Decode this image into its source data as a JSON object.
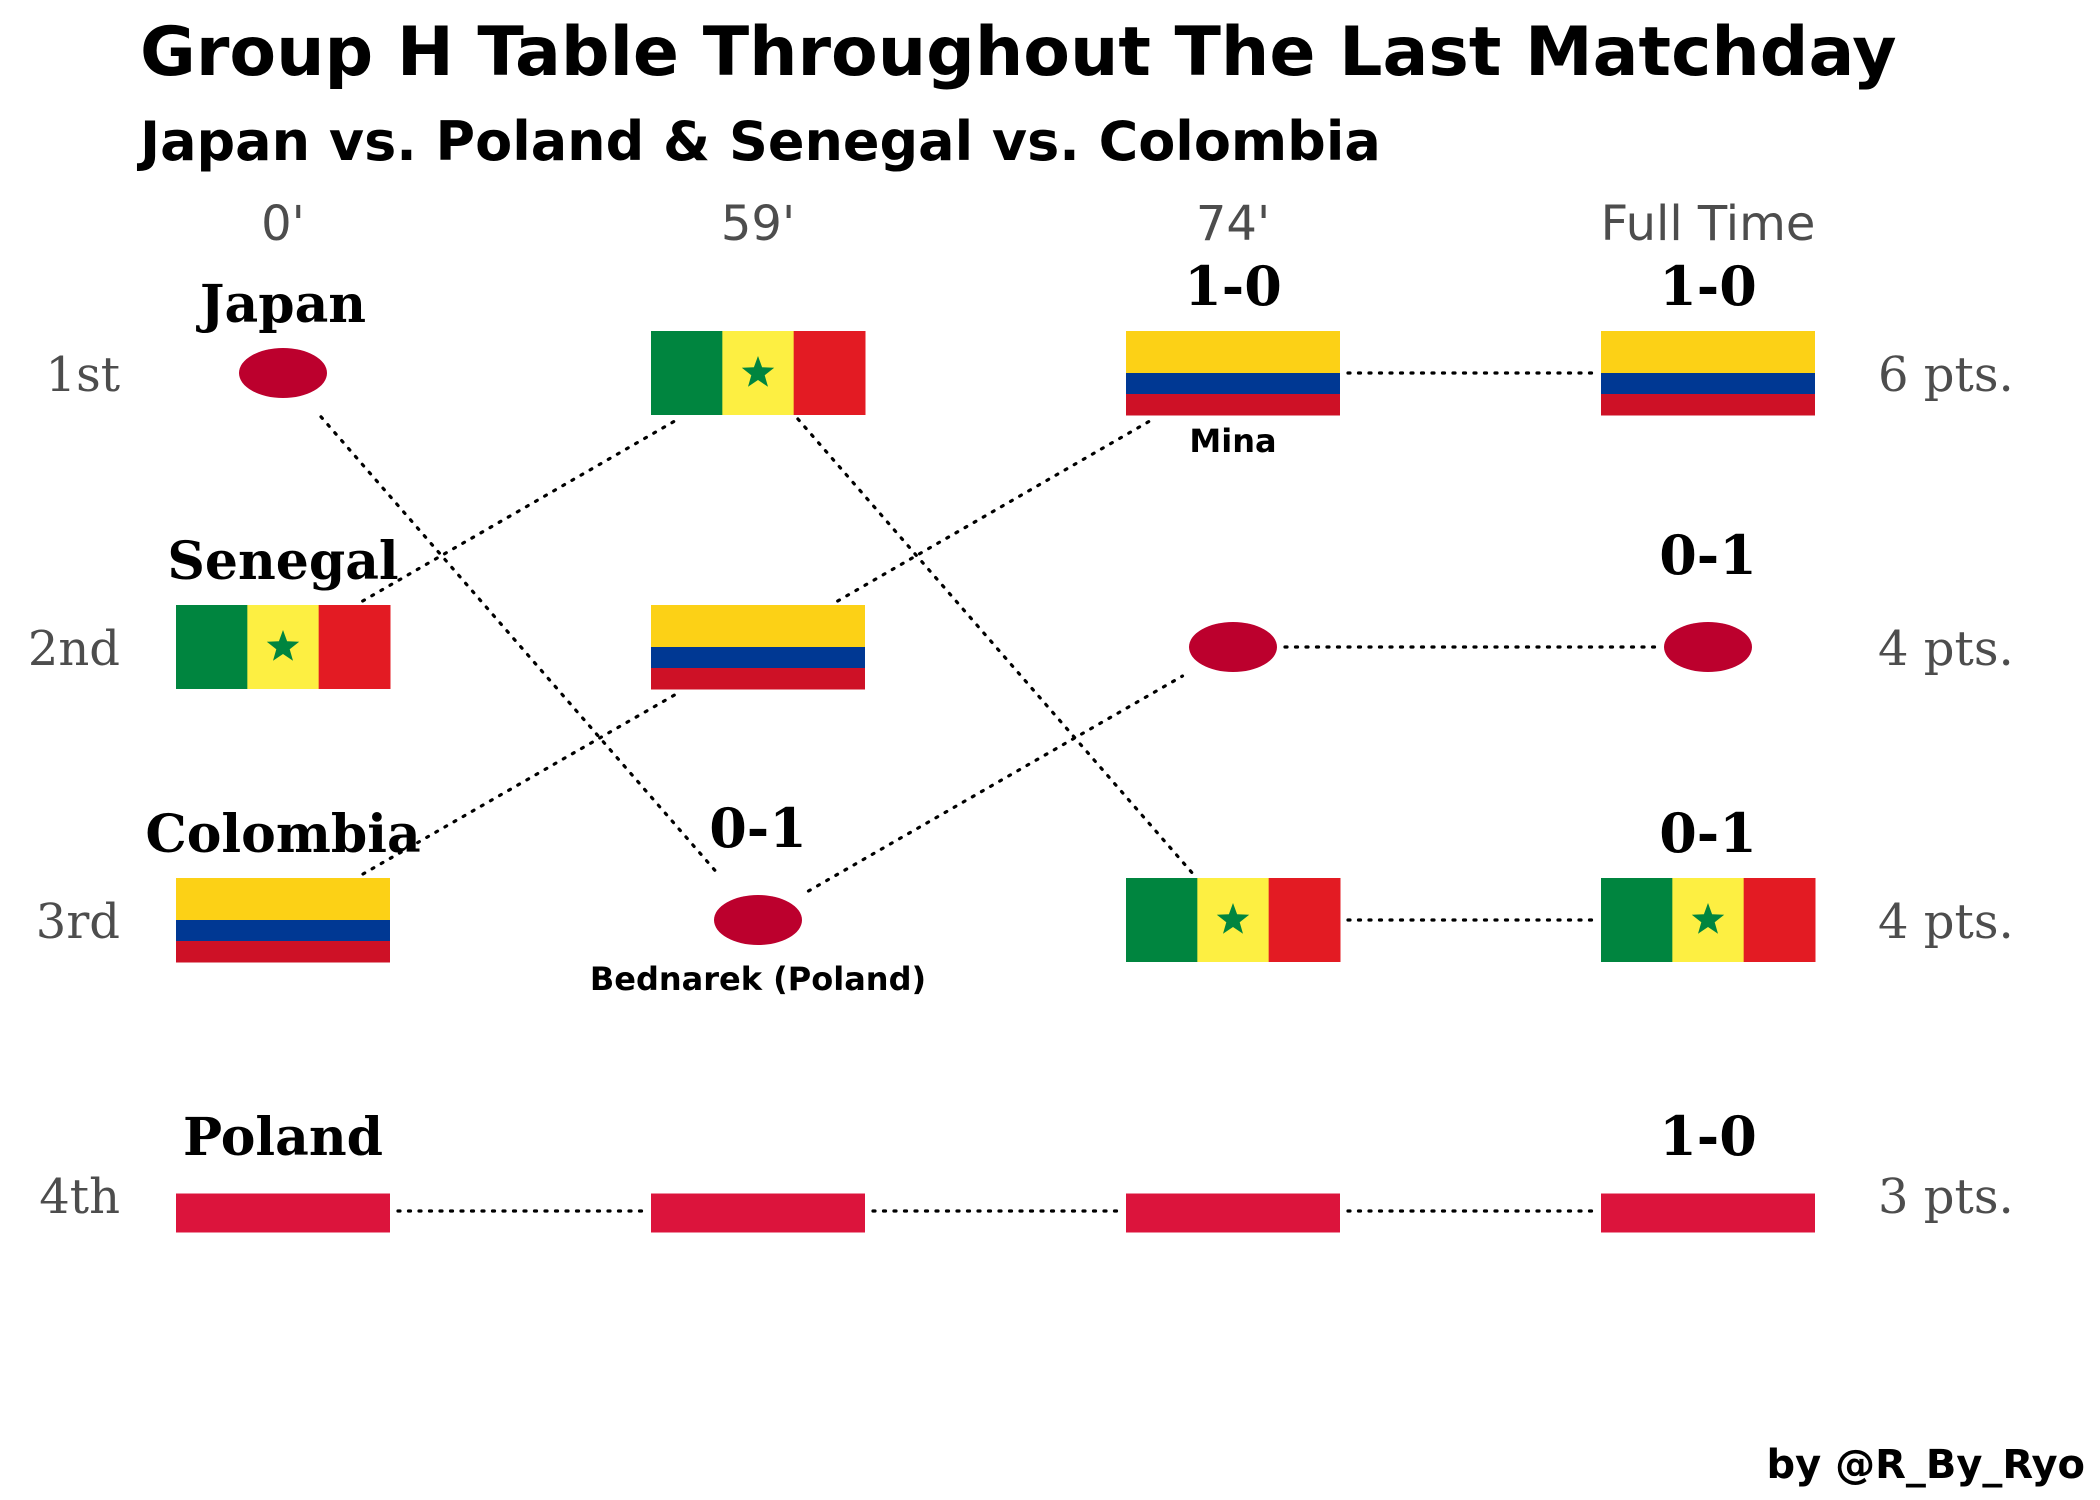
{
  "title": "Group H Table Throughout The Last Matchday",
  "subtitle": "Japan vs. Poland & Senegal vs. Colombia",
  "credit": "by @R_By_Ryo",
  "time_labels": [
    "0'",
    "59'",
    "74'",
    "Full Time"
  ],
  "rank_labels": [
    "1st",
    "2nd",
    "3rd",
    "4th"
  ],
  "points_labels": [
    "6 pts.",
    "4 pts.",
    "4 pts.",
    "3 pts."
  ],
  "team_names": [
    "Japan",
    "Senegal",
    "Colombia",
    "Poland"
  ],
  "flag_colors": {
    "senegal": [
      "#00853f",
      "#fdef42",
      "#e31b23"
    ],
    "senegal_star": "#00853f",
    "colombia": [
      "#fcd116",
      "#003893",
      "#ce1126"
    ],
    "japan_disc": "#bc002d",
    "poland": "#dc143c"
  },
  "chart_data": {
    "type": "bump",
    "x": [
      "0'",
      "59'",
      "74'",
      "Full Time"
    ],
    "y_categories": [
      "1st",
      "2nd",
      "3rd",
      "4th"
    ],
    "series": [
      {
        "name": "Japan",
        "flag": "japan",
        "positions": [
          1,
          3,
          2,
          2
        ]
      },
      {
        "name": "Senegal",
        "flag": "senegal",
        "positions": [
          2,
          1,
          3,
          3
        ]
      },
      {
        "name": "Colombia",
        "flag": "colombia",
        "positions": [
          3,
          2,
          1,
          1
        ]
      },
      {
        "name": "Poland",
        "flag": "poland",
        "positions": [
          4,
          4,
          4,
          4
        ]
      }
    ],
    "annotations": [
      {
        "team": "Japan",
        "time": "59'",
        "score": "0-1",
        "scorer": "Bednarek (Poland)"
      },
      {
        "team": "Colombia",
        "time": "74'",
        "score": "1-0",
        "scorer": "Mina"
      },
      {
        "team": "Colombia",
        "time": "Full Time",
        "score": "1-0"
      },
      {
        "team": "Japan",
        "time": "Full Time",
        "score": "0-1"
      },
      {
        "team": "Senegal",
        "time": "Full Time",
        "score": "0-1"
      },
      {
        "team": "Poland",
        "time": "Full Time",
        "score": "1-0"
      }
    ],
    "final_points": {
      "Colombia": 6,
      "Japan": 4,
      "Senegal": 4,
      "Poland": 3
    }
  }
}
